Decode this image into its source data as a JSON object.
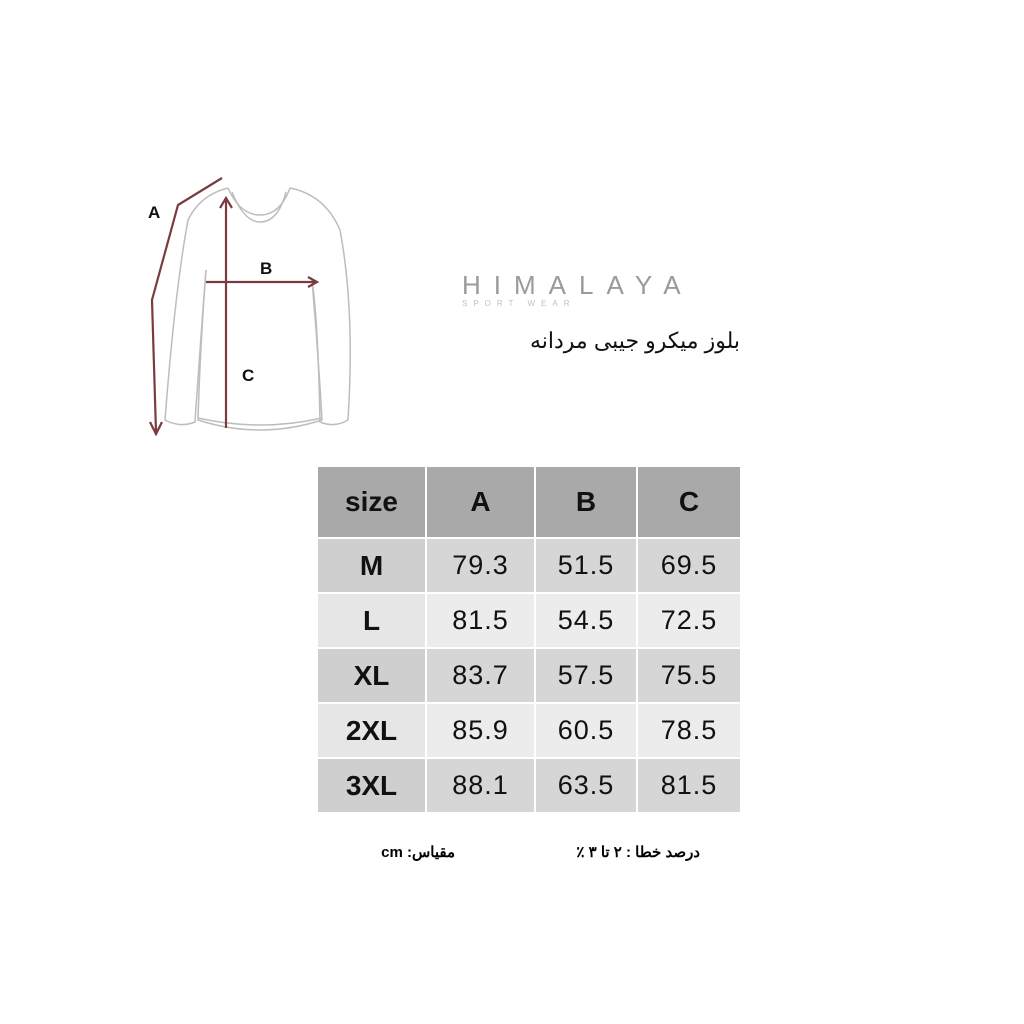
{
  "diagram": {
    "labels": {
      "a": "A",
      "b": "B",
      "c": "C"
    },
    "arrow_color": "#7a3b40"
  },
  "brand": {
    "name": "HIMALAYA",
    "tagline": "SPORT WEAR"
  },
  "product_title": "بلوز میکرو جیبی مردانه",
  "size_table": {
    "headers": [
      "size",
      "A",
      "B",
      "C"
    ],
    "rows": [
      [
        "M",
        "79.3",
        "51.5",
        "69.5"
      ],
      [
        "L",
        "81.5",
        "54.5",
        "72.5"
      ],
      [
        "XL",
        "83.7",
        "57.5",
        "75.5"
      ],
      [
        "2XL",
        "85.9",
        "60.5",
        "78.5"
      ],
      [
        "3XL",
        "88.1",
        "63.5",
        "81.5"
      ]
    ]
  },
  "footer": {
    "unit": "مقیاس: cm",
    "tolerance": "درصد خطا : ۲ تا ۳ ٪"
  }
}
